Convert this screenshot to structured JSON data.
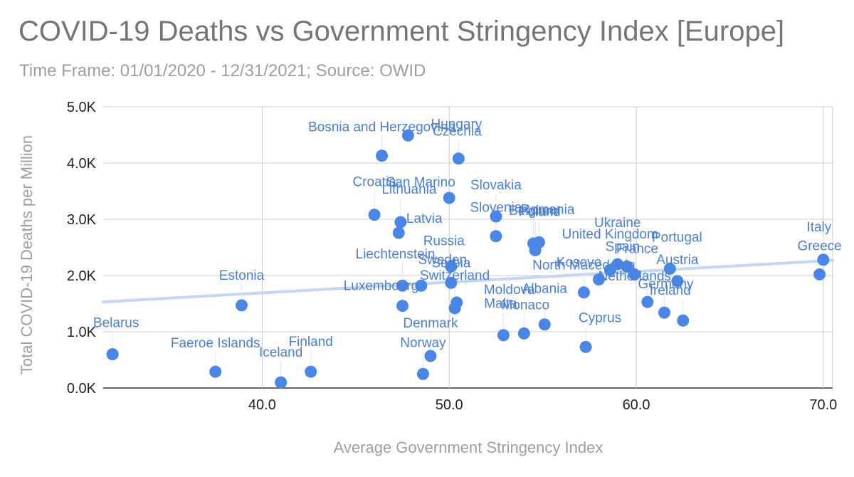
{
  "chart_data": {
    "type": "scatter",
    "title": "COVID-19 Deaths vs Government Stringency Index [Europe]",
    "subtitle": "Time Frame: 01/01/2020 - 12/31/2021; Source: OWID",
    "xlabel": "Average Government Stringency Index",
    "ylabel": "Total COVID-19 Deaths per Million",
    "xlim": [
      31.5,
      70.5
    ],
    "ylim": [
      0,
      5000
    ],
    "xticks": [
      40,
      50,
      60,
      70
    ],
    "xtick_labels": [
      "40.0",
      "50.0",
      "60.0",
      "70.0"
    ],
    "yticks": [
      0,
      1000,
      2000,
      3000,
      4000,
      5000
    ],
    "ytick_labels": [
      "0.0K",
      "1.0K",
      "2.0K",
      "3.0K",
      "4.0K",
      "5.0K"
    ],
    "grid": true,
    "point_color": "#4a86e8",
    "trendline_color": "#c5d5f4",
    "trendline": {
      "x": [
        31.5,
        70.5
      ],
      "y": [
        1530,
        2270
      ]
    },
    "points": [
      {
        "x": 32.0,
        "y": 600,
        "label": "Belarus"
      },
      {
        "x": 37.5,
        "y": 290,
        "label": "Faeroe Islands"
      },
      {
        "x": 38.9,
        "y": 1470,
        "label": "Estonia"
      },
      {
        "x": 41.0,
        "y": 100,
        "label": "Iceland"
      },
      {
        "x": 42.6,
        "y": 290,
        "label": "Finland"
      },
      {
        "x": 46.0,
        "y": 3080,
        "label": "Croatia"
      },
      {
        "x": 46.4,
        "y": 4130,
        "label": "Bosnia and Herzegovina"
      },
      {
        "x": 47.4,
        "y": 2950,
        "label": "Lithuania"
      },
      {
        "x": 47.8,
        "y": 4490,
        "label": "Hungary"
      },
      {
        "x": 47.3,
        "y": 2760,
        "label": "Latvia"
      },
      {
        "x": 47.5,
        "y": 1820,
        "label": "Liechtenstein"
      },
      {
        "x": 47.5,
        "y": 1460,
        "label": "Luxembourg"
      },
      {
        "x": 48.5,
        "y": 1820,
        "label": "Sweden"
      },
      {
        "x": 48.6,
        "y": 250,
        "label": "Norway"
      },
      {
        "x": 49.0,
        "y": 570,
        "label": "Denmark"
      },
      {
        "x": 50.0,
        "y": 3380,
        "label": "San Marino"
      },
      {
        "x": 50.1,
        "y": 2160,
        "label": "Russia"
      },
      {
        "x": 50.1,
        "y": 1870,
        "label": "Serbia"
      },
      {
        "x": 50.3,
        "y": 1420,
        "label": "Switzerland"
      },
      {
        "x": 50.4,
        "y": 1520,
        "label": "Moldova"
      },
      {
        "x": 50.5,
        "y": 4080,
        "label": "Czechia"
      },
      {
        "x": 52.5,
        "y": 3050,
        "label": "Slovakia"
      },
      {
        "x": 52.5,
        "y": 2700,
        "label": "Slovenia"
      },
      {
        "x": 52.9,
        "y": 940,
        "label": "Malta"
      },
      {
        "x": 54.0,
        "y": 970,
        "label": "Monaco"
      },
      {
        "x": 54.5,
        "y": 2570,
        "label": "Belgium"
      },
      {
        "x": 54.6,
        "y": 2450,
        "label": "Poland"
      },
      {
        "x": 54.8,
        "y": 2590,
        "label": "Romania"
      },
      {
        "x": 55.1,
        "y": 1130,
        "label": "Albania"
      },
      {
        "x": 57.2,
        "y": 1700,
        "label": "North Macedonia"
      },
      {
        "x": 57.3,
        "y": 730,
        "label": "Cyprus"
      },
      {
        "x": 58.0,
        "y": 1930,
        "label": "Kosovo"
      },
      {
        "x": 58.6,
        "y": 2100,
        "label": "United Kingdom"
      },
      {
        "x": 59.0,
        "y": 2200,
        "label": "Ukraine"
      },
      {
        "x": 59.5,
        "y": 2160,
        "label": "Spain"
      },
      {
        "x": 59.9,
        "y": 2020,
        "label": "France"
      },
      {
        "x": 60.6,
        "y": 1530,
        "label": "Netherlands"
      },
      {
        "x": 61.5,
        "y": 1340,
        "label": "Germany"
      },
      {
        "x": 61.8,
        "y": 2120,
        "label": "Portugal"
      },
      {
        "x": 62.5,
        "y": 1200,
        "label": "Ireland"
      },
      {
        "x": 62.2,
        "y": 1900,
        "label": "Austria"
      },
      {
        "x": 69.8,
        "y": 2020,
        "label": "Greece"
      },
      {
        "x": 70.0,
        "y": 2280,
        "label": "Italy"
      }
    ]
  }
}
